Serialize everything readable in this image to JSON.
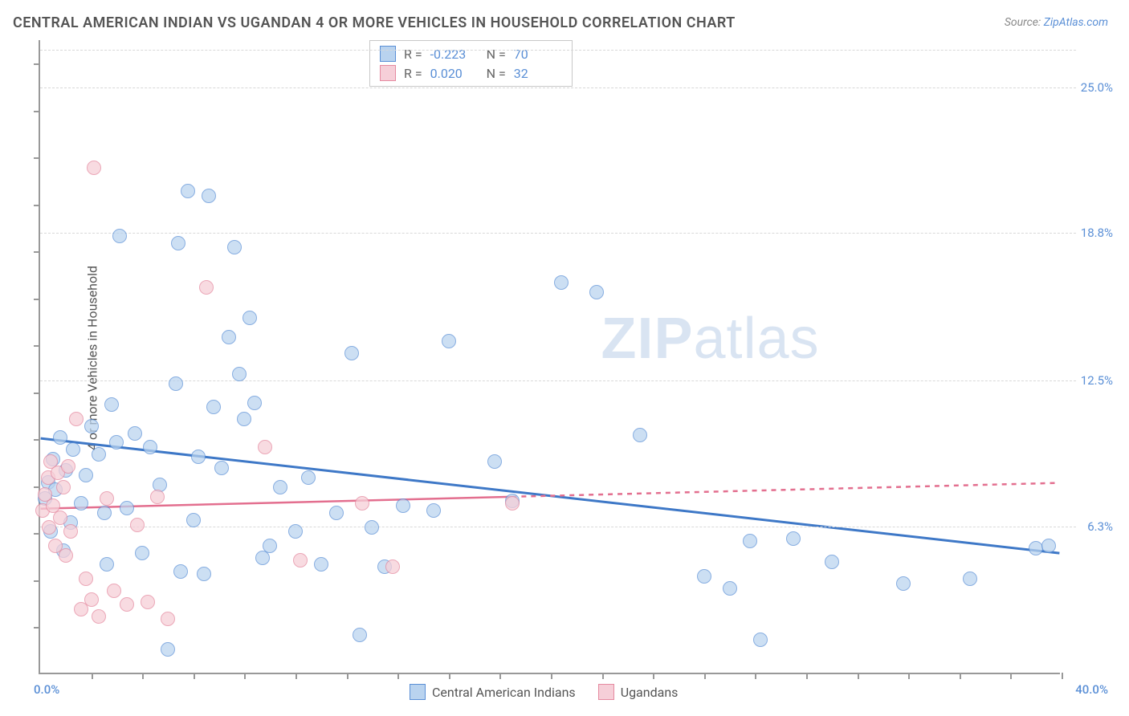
{
  "title": "CENTRAL AMERICAN INDIAN VS UGANDAN 4 OR MORE VEHICLES IN HOUSEHOLD CORRELATION CHART",
  "source_prefix": "Source: ",
  "source_link": "ZipAtlas.com",
  "ylabel": "4 or more Vehicles in Household",
  "watermark_a": "ZIP",
  "watermark_b": "atlas",
  "chart": {
    "type": "scatter",
    "background_color": "#ffffff",
    "grid_color": "#d8d8d8",
    "axis_color": "#999999",
    "xlim": [
      0,
      40
    ],
    "ylim": [
      0,
      27
    ],
    "xticks_minor": [
      2,
      4,
      6,
      8,
      10,
      12,
      14,
      16,
      18,
      20,
      22,
      24,
      26,
      28,
      30,
      32,
      34,
      36,
      38,
      40
    ],
    "yticks_minor": [
      2,
      4,
      6,
      8,
      10,
      12,
      14,
      16,
      18,
      20,
      22,
      24,
      26
    ],
    "ytick_labels": [
      {
        "y": 6.3,
        "label": "6.3%"
      },
      {
        "y": 12.5,
        "label": "12.5%"
      },
      {
        "y": 18.8,
        "label": "18.8%"
      },
      {
        "y": 25.0,
        "label": "25.0%"
      }
    ],
    "xmin_label": "0.0%",
    "xmax_label": "40.0%",
    "marker_radius": 9,
    "marker_border_width": 1.2,
    "label_fontsize": 15,
    "label_color": "#5a8fd6",
    "series": [
      {
        "name": "Central American Indians",
        "fill": "#b9d3ef",
        "stroke": "#5a8fd6",
        "fill_opacity": 0.72,
        "R": "-0.223",
        "N": "70",
        "trend": {
          "y_at_x0": 10.0,
          "y_at_xmax": 5.1,
          "stroke": "#3e78c7",
          "width": 3,
          "dash": ""
        },
        "points": [
          [
            0.2,
            7.4
          ],
          [
            0.3,
            8.1
          ],
          [
            0.4,
            6.0
          ],
          [
            0.5,
            9.1
          ],
          [
            0.6,
            7.8
          ],
          [
            0.8,
            10.0
          ],
          [
            0.9,
            5.2
          ],
          [
            1.0,
            8.6
          ],
          [
            1.2,
            6.4
          ],
          [
            1.3,
            9.5
          ],
          [
            1.6,
            7.2
          ],
          [
            1.8,
            8.4
          ],
          [
            2.0,
            10.5
          ],
          [
            2.3,
            9.3
          ],
          [
            2.5,
            6.8
          ],
          [
            2.6,
            4.6
          ],
          [
            3.0,
            9.8
          ],
          [
            3.1,
            18.6
          ],
          [
            3.4,
            7.0
          ],
          [
            3.7,
            10.2
          ],
          [
            4.0,
            5.1
          ],
          [
            4.3,
            9.6
          ],
          [
            4.7,
            8.0
          ],
          [
            5.0,
            1.0
          ],
          [
            5.3,
            12.3
          ],
          [
            5.4,
            18.3
          ],
          [
            5.8,
            20.5
          ],
          [
            6.0,
            6.5
          ],
          [
            6.2,
            9.2
          ],
          [
            6.4,
            4.2
          ],
          [
            6.6,
            20.3
          ],
          [
            6.8,
            11.3
          ],
          [
            7.1,
            8.7
          ],
          [
            7.4,
            14.3
          ],
          [
            7.6,
            18.1
          ],
          [
            7.8,
            12.7
          ],
          [
            8.0,
            10.8
          ],
          [
            8.2,
            15.1
          ],
          [
            8.4,
            11.5
          ],
          [
            8.7,
            4.9
          ],
          [
            9.0,
            5.4
          ],
          [
            9.4,
            7.9
          ],
          [
            10.0,
            6.0
          ],
          [
            10.5,
            8.3
          ],
          [
            11.0,
            4.6
          ],
          [
            11.6,
            6.8
          ],
          [
            12.2,
            13.6
          ],
          [
            12.5,
            1.6
          ],
          [
            13.0,
            6.2
          ],
          [
            13.5,
            4.5
          ],
          [
            14.2,
            7.1
          ],
          [
            15.4,
            6.9
          ],
          [
            16.0,
            14.1
          ],
          [
            17.8,
            9.0
          ],
          [
            18.5,
            7.3
          ],
          [
            20.4,
            16.6
          ],
          [
            21.8,
            16.2
          ],
          [
            23.5,
            10.1
          ],
          [
            26.0,
            4.1
          ],
          [
            27.0,
            3.6
          ],
          [
            27.8,
            5.6
          ],
          [
            28.2,
            1.4
          ],
          [
            29.5,
            5.7
          ],
          [
            31.0,
            4.7
          ],
          [
            33.8,
            3.8
          ],
          [
            36.4,
            4.0
          ],
          [
            39.0,
            5.3
          ],
          [
            39.5,
            5.4
          ],
          [
            5.5,
            4.3
          ],
          [
            2.8,
            11.4
          ]
        ]
      },
      {
        "name": "Ugandans",
        "fill": "#f6cfd8",
        "stroke": "#e58aa0",
        "fill_opacity": 0.75,
        "R": "0.020",
        "N": "32",
        "trend": {
          "y_at_x0": 7.0,
          "y_at_xmax": 8.1,
          "stroke": "#e36f8f",
          "width": 2.5,
          "solid_until_x": 18.5,
          "dash_after": "6 6"
        },
        "points": [
          [
            0.1,
            6.9
          ],
          [
            0.2,
            7.6
          ],
          [
            0.3,
            8.3
          ],
          [
            0.35,
            6.2
          ],
          [
            0.4,
            9.0
          ],
          [
            0.5,
            7.1
          ],
          [
            0.6,
            5.4
          ],
          [
            0.7,
            8.5
          ],
          [
            0.8,
            6.6
          ],
          [
            0.9,
            7.9
          ],
          [
            1.0,
            5.0
          ],
          [
            1.1,
            8.8
          ],
          [
            1.2,
            6.0
          ],
          [
            1.4,
            10.8
          ],
          [
            1.6,
            2.7
          ],
          [
            1.8,
            4.0
          ],
          [
            2.0,
            3.1
          ],
          [
            2.1,
            21.5
          ],
          [
            2.3,
            2.4
          ],
          [
            2.6,
            7.4
          ],
          [
            2.9,
            3.5
          ],
          [
            3.4,
            2.9
          ],
          [
            3.8,
            6.3
          ],
          [
            4.2,
            3.0
          ],
          [
            4.6,
            7.5
          ],
          [
            5.0,
            2.3
          ],
          [
            6.5,
            16.4
          ],
          [
            8.8,
            9.6
          ],
          [
            10.2,
            4.8
          ],
          [
            12.6,
            7.2
          ],
          [
            13.8,
            4.5
          ],
          [
            18.5,
            7.2
          ]
        ]
      }
    ]
  },
  "legend_top": {
    "R_label": "R =",
    "N_label": "N ="
  },
  "legend_bottom": [
    {
      "key": "s0"
    },
    {
      "key": "s1"
    }
  ]
}
